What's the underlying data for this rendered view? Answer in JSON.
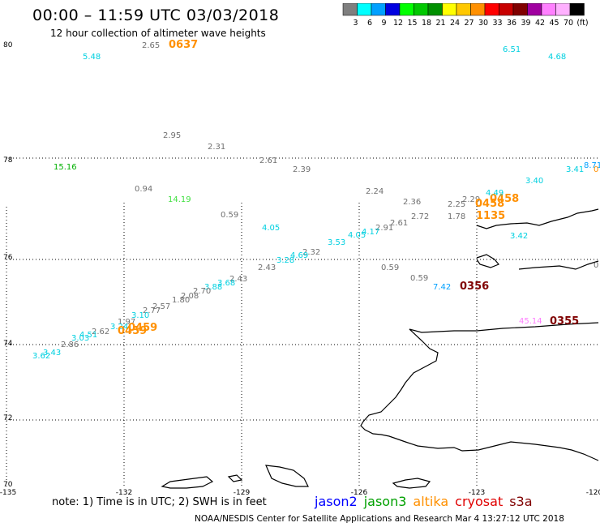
{
  "header": {
    "title": "00:00 – 11:59 UTC 03/03/2018",
    "subtitle": "12 hour collection of altimeter wave heights"
  },
  "colorbar": {
    "colors": [
      "#7f7f7f",
      "#00ffff",
      "#00a0ff",
      "#0000e0",
      "#00ff00",
      "#00c800",
      "#009000",
      "#ffff00",
      "#ffc800",
      "#ff9000",
      "#ff0000",
      "#c80000",
      "#800000",
      "#a000a0",
      "#ff80ff",
      "#ffb0ff",
      "#000000"
    ],
    "labels": [
      "3",
      "6",
      "9",
      "12",
      "15",
      "18",
      "21",
      "24",
      "27",
      "30",
      "33",
      "36",
      "39",
      "42",
      "45",
      "70",
      "(ft)"
    ]
  },
  "axes": {
    "lat_labels": [
      "80",
      "78",
      "76",
      "74",
      "72",
      "70"
    ],
    "lon_labels": [
      "-135",
      "-132",
      "-129",
      "-126",
      "-123",
      "-120"
    ]
  },
  "readings": [
    {
      "text": "5.48",
      "color": "#00d0e0"
    },
    {
      "text": "2.65",
      "color": "#707070"
    },
    {
      "text": "0637",
      "color": "#ff9000"
    },
    {
      "text": "6.51",
      "color": "#00d0e0"
    },
    {
      "text": "4.68",
      "color": "#00d0e0"
    },
    {
      "text": "2.95",
      "color": "#707070"
    },
    {
      "text": "2.31",
      "color": "#707070"
    },
    {
      "text": "2.61",
      "color": "#707070"
    },
    {
      "text": "2.39",
      "color": "#707070"
    },
    {
      "text": "15.16",
      "color": "#00b000"
    },
    {
      "text": "0.94",
      "color": "#707070"
    },
    {
      "text": "14.19",
      "color": "#40e040"
    },
    {
      "text": "0.59",
      "color": "#707070"
    },
    {
      "text": "2.24",
      "color": "#707070"
    },
    {
      "text": "2.36",
      "color": "#707070"
    },
    {
      "text": "2.25",
      "color": "#707070"
    },
    {
      "text": "2.29",
      "color": "#707070"
    },
    {
      "text": "0458",
      "color": "#ff9000"
    },
    {
      "text": "0458",
      "color": "#ff9000"
    },
    {
      "text": "4.49",
      "color": "#00d0e0"
    },
    {
      "text": "3.40",
      "color": "#00d0e0"
    },
    {
      "text": "3.41",
      "color": "#00d0e0"
    },
    {
      "text": "8.71",
      "color": "#00a0ff"
    },
    {
      "text": "0",
      "color": "#ff9000"
    },
    {
      "text": "1.78",
      "color": "#707070"
    },
    {
      "text": "1135",
      "color": "#ff9000"
    },
    {
      "text": "2.72",
      "color": "#707070"
    },
    {
      "text": "2.61",
      "color": "#707070"
    },
    {
      "text": "2.91",
      "color": "#707070"
    },
    {
      "text": "4.17",
      "color": "#00d0e0"
    },
    {
      "text": "4.05",
      "color": "#00d0e0"
    },
    {
      "text": "4.05",
      "color": "#00d0e0"
    },
    {
      "text": "3.53",
      "color": "#00d0e0"
    },
    {
      "text": "3.42",
      "color": "#00d0e0"
    },
    {
      "text": "2.32",
      "color": "#707070"
    },
    {
      "text": "4.69",
      "color": "#00d0e0"
    },
    {
      "text": "3.28",
      "color": "#00d0e0"
    },
    {
      "text": "2.43",
      "color": "#707070"
    },
    {
      "text": "0.59",
      "color": "#707070"
    },
    {
      "text": "0.59",
      "color": "#707070"
    },
    {
      "text": "0",
      "color": "#707070"
    },
    {
      "text": "7.42",
      "color": "#00a0ff"
    },
    {
      "text": "0356",
      "color": "#800000"
    },
    {
      "text": "2.43",
      "color": "#707070"
    },
    {
      "text": "3.68",
      "color": "#00d0e0"
    },
    {
      "text": "3.88",
      "color": "#00d0e0"
    },
    {
      "text": "2.70",
      "color": "#707070"
    },
    {
      "text": "2.08",
      "color": "#707070"
    },
    {
      "text": "1.80",
      "color": "#707070"
    },
    {
      "text": "2.57",
      "color": "#707070"
    },
    {
      "text": "2.77",
      "color": "#707070"
    },
    {
      "text": "3.10",
      "color": "#00d0e0"
    },
    {
      "text": "1.97",
      "color": "#707070"
    },
    {
      "text": "0459",
      "color": "#ff9000"
    },
    {
      "text": "3.24",
      "color": "#00d0e0"
    },
    {
      "text": "0459",
      "color": "#ff9000"
    },
    {
      "text": "2.62",
      "color": "#707070"
    },
    {
      "text": "4.51",
      "color": "#00d0e0"
    },
    {
      "text": "3.03",
      "color": "#00d0e0"
    },
    {
      "text": "2.86",
      "color": "#707070"
    },
    {
      "text": "3.43",
      "color": "#00d0e0"
    },
    {
      "text": "3.62",
      "color": "#00d0e0"
    },
    {
      "text": "45.14",
      "color": "#ff80ff"
    },
    {
      "text": "0355",
      "color": "#800000"
    }
  ],
  "footer": {
    "note": "note: 1) Time is in UTC; 2) SWH is in feet",
    "credit": "NOAA/NESDIS Center for Satellite Applications and Research   Mar  4 13:27:12 UTC 2018",
    "satellites": [
      {
        "name": "jason2",
        "color": "#0000ff"
      },
      {
        "name": "jason3",
        "color": "#00a000"
      },
      {
        "name": "altika",
        "color": "#ff9000"
      },
      {
        "name": "cryosat",
        "color": "#e00000"
      },
      {
        "name": "s3a",
        "color": "#800000"
      }
    ]
  }
}
